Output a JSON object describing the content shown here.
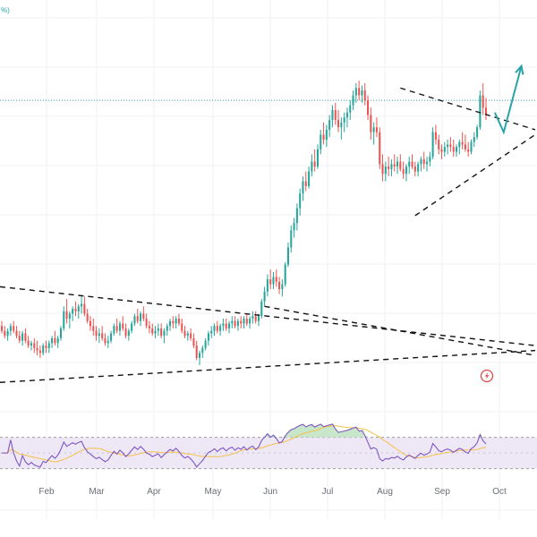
{
  "corner_label": "%)",
  "chart_data": {
    "type": "candlestick",
    "colors": {
      "up": "#26a69a",
      "down": "#ef5350",
      "background": "#ffffff",
      "grid": "#eef0f3",
      "trendline": "#111111",
      "arrow": "#2aa3a8",
      "level_line": "#2aa3a8",
      "rsi_line": "#7e57c2",
      "rsi_ma": "#f5c04a",
      "rsi_band": "#ede7f6",
      "overbought_fill": "#c8e6c9",
      "marker": "#e04a4a"
    },
    "x_axis": {
      "labels": [
        "Feb",
        "Mar",
        "Apr",
        "May",
        "Jun",
        "Jul",
        "Aug",
        "Sep",
        "Oct"
      ]
    },
    "price_panel": {
      "grid": true,
      "candles": [
        {
          "o": 54,
          "h": 56,
          "l": 51,
          "c": 52
        },
        {
          "o": 52,
          "h": 54,
          "l": 49,
          "c": 50
        },
        {
          "o": 50,
          "h": 53,
          "l": 48,
          "c": 52
        },
        {
          "o": 52,
          "h": 55,
          "l": 50,
          "c": 54
        },
        {
          "o": 54,
          "h": 56,
          "l": 51,
          "c": 52
        },
        {
          "o": 52,
          "h": 54,
          "l": 49,
          "c": 50
        },
        {
          "o": 50,
          "h": 52,
          "l": 47,
          "c": 48
        },
        {
          "o": 48,
          "h": 52,
          "l": 46,
          "c": 51
        },
        {
          "o": 51,
          "h": 53,
          "l": 47,
          "c": 48
        },
        {
          "o": 48,
          "h": 50,
          "l": 45,
          "c": 46
        },
        {
          "o": 46,
          "h": 48,
          "l": 44,
          "c": 47
        },
        {
          "o": 47,
          "h": 49,
          "l": 43,
          "c": 45
        },
        {
          "o": 45,
          "h": 48,
          "l": 42,
          "c": 44
        },
        {
          "o": 44,
          "h": 46,
          "l": 41,
          "c": 43
        },
        {
          "o": 43,
          "h": 47,
          "l": 42,
          "c": 46
        },
        {
          "o": 46,
          "h": 48,
          "l": 43,
          "c": 45
        },
        {
          "o": 45,
          "h": 48,
          "l": 43,
          "c": 47
        },
        {
          "o": 47,
          "h": 50,
          "l": 45,
          "c": 49
        },
        {
          "o": 49,
          "h": 52,
          "l": 46,
          "c": 47
        },
        {
          "o": 47,
          "h": 50,
          "l": 45,
          "c": 49
        },
        {
          "o": 49,
          "h": 54,
          "l": 48,
          "c": 53
        },
        {
          "o": 53,
          "h": 62,
          "l": 52,
          "c": 60
        },
        {
          "o": 60,
          "h": 65,
          "l": 55,
          "c": 57
        },
        {
          "o": 57,
          "h": 60,
          "l": 53,
          "c": 59
        },
        {
          "o": 59,
          "h": 62,
          "l": 56,
          "c": 61
        },
        {
          "o": 61,
          "h": 64,
          "l": 58,
          "c": 60
        },
        {
          "o": 60,
          "h": 63,
          "l": 57,
          "c": 62
        },
        {
          "o": 62,
          "h": 66,
          "l": 59,
          "c": 63
        },
        {
          "o": 63,
          "h": 66,
          "l": 58,
          "c": 59
        },
        {
          "o": 59,
          "h": 61,
          "l": 55,
          "c": 56
        },
        {
          "o": 56,
          "h": 58,
          "l": 52,
          "c": 54
        },
        {
          "o": 54,
          "h": 57,
          "l": 50,
          "c": 52
        },
        {
          "o": 52,
          "h": 54,
          "l": 48,
          "c": 50
        },
        {
          "o": 50,
          "h": 53,
          "l": 47,
          "c": 51
        },
        {
          "o": 51,
          "h": 54,
          "l": 48,
          "c": 49
        },
        {
          "o": 49,
          "h": 51,
          "l": 46,
          "c": 47
        },
        {
          "o": 47,
          "h": 50,
          "l": 45,
          "c": 48
        },
        {
          "o": 48,
          "h": 52,
          "l": 47,
          "c": 51
        },
        {
          "o": 51,
          "h": 55,
          "l": 50,
          "c": 54
        },
        {
          "o": 54,
          "h": 57,
          "l": 51,
          "c": 52
        },
        {
          "o": 52,
          "h": 56,
          "l": 50,
          "c": 55
        },
        {
          "o": 55,
          "h": 58,
          "l": 52,
          "c": 53
        },
        {
          "o": 53,
          "h": 55,
          "l": 49,
          "c": 50
        },
        {
          "o": 50,
          "h": 53,
          "l": 48,
          "c": 52
        },
        {
          "o": 52,
          "h": 56,
          "l": 51,
          "c": 55
        },
        {
          "o": 55,
          "h": 59,
          "l": 54,
          "c": 58
        },
        {
          "o": 58,
          "h": 61,
          "l": 55,
          "c": 56
        },
        {
          "o": 56,
          "h": 60,
          "l": 54,
          "c": 59
        },
        {
          "o": 59,
          "h": 62,
          "l": 56,
          "c": 57
        },
        {
          "o": 57,
          "h": 59,
          "l": 53,
          "c": 54
        },
        {
          "o": 54,
          "h": 56,
          "l": 51,
          "c": 53
        },
        {
          "o": 53,
          "h": 55,
          "l": 50,
          "c": 51
        },
        {
          "o": 51,
          "h": 54,
          "l": 49,
          "c": 52
        },
        {
          "o": 52,
          "h": 55,
          "l": 50,
          "c": 53
        },
        {
          "o": 53,
          "h": 55,
          "l": 49,
          "c": 50
        },
        {
          "o": 50,
          "h": 53,
          "l": 47,
          "c": 52
        },
        {
          "o": 52,
          "h": 55,
          "l": 50,
          "c": 54
        },
        {
          "o": 54,
          "h": 57,
          "l": 52,
          "c": 56
        },
        {
          "o": 56,
          "h": 58,
          "l": 53,
          "c": 55
        },
        {
          "o": 55,
          "h": 58,
          "l": 53,
          "c": 57
        },
        {
          "o": 57,
          "h": 59,
          "l": 54,
          "c": 55
        },
        {
          "o": 55,
          "h": 57,
          "l": 51,
          "c": 52
        },
        {
          "o": 52,
          "h": 54,
          "l": 49,
          "c": 50
        },
        {
          "o": 50,
          "h": 52,
          "l": 48,
          "c": 51
        },
        {
          "o": 51,
          "h": 53,
          "l": 48,
          "c": 49
        },
        {
          "o": 49,
          "h": 51,
          "l": 45,
          "c": 46
        },
        {
          "o": 46,
          "h": 48,
          "l": 40,
          "c": 41
        },
        {
          "o": 41,
          "h": 44,
          "l": 38,
          "c": 43
        },
        {
          "o": 43,
          "h": 46,
          "l": 41,
          "c": 45
        },
        {
          "o": 45,
          "h": 49,
          "l": 44,
          "c": 48
        },
        {
          "o": 48,
          "h": 52,
          "l": 46,
          "c": 51
        },
        {
          "o": 51,
          "h": 54,
          "l": 49,
          "c": 52
        },
        {
          "o": 52,
          "h": 55,
          "l": 50,
          "c": 54
        },
        {
          "o": 54,
          "h": 56,
          "l": 51,
          "c": 52
        },
        {
          "o": 52,
          "h": 55,
          "l": 50,
          "c": 54
        },
        {
          "o": 54,
          "h": 57,
          "l": 52,
          "c": 55
        },
        {
          "o": 55,
          "h": 57,
          "l": 52,
          "c": 53
        },
        {
          "o": 53,
          "h": 56,
          "l": 51,
          "c": 55
        },
        {
          "o": 55,
          "h": 58,
          "l": 53,
          "c": 56
        },
        {
          "o": 56,
          "h": 58,
          "l": 53,
          "c": 54
        },
        {
          "o": 54,
          "h": 57,
          "l": 52,
          "c": 56
        },
        {
          "o": 56,
          "h": 58,
          "l": 53,
          "c": 55
        },
        {
          "o": 55,
          "h": 58,
          "l": 53,
          "c": 57
        },
        {
          "o": 57,
          "h": 59,
          "l": 54,
          "c": 55
        },
        {
          "o": 55,
          "h": 58,
          "l": 53,
          "c": 57
        },
        {
          "o": 57,
          "h": 60,
          "l": 55,
          "c": 58
        },
        {
          "o": 58,
          "h": 60,
          "l": 55,
          "c": 56
        },
        {
          "o": 56,
          "h": 59,
          "l": 54,
          "c": 58
        },
        {
          "o": 58,
          "h": 65,
          "l": 57,
          "c": 64
        },
        {
          "o": 64,
          "h": 70,
          "l": 62,
          "c": 68
        },
        {
          "o": 68,
          "h": 75,
          "l": 66,
          "c": 73
        },
        {
          "o": 73,
          "h": 77,
          "l": 69,
          "c": 71
        },
        {
          "o": 71,
          "h": 76,
          "l": 69,
          "c": 74
        },
        {
          "o": 74,
          "h": 77,
          "l": 70,
          "c": 72
        },
        {
          "o": 72,
          "h": 74,
          "l": 67,
          "c": 69
        },
        {
          "o": 69,
          "h": 73,
          "l": 66,
          "c": 71
        },
        {
          "o": 71,
          "h": 80,
          "l": 70,
          "c": 79
        },
        {
          "o": 79,
          "h": 88,
          "l": 78,
          "c": 86
        },
        {
          "o": 86,
          "h": 95,
          "l": 84,
          "c": 93
        },
        {
          "o": 93,
          "h": 98,
          "l": 90,
          "c": 96
        },
        {
          "o": 96,
          "h": 104,
          "l": 93,
          "c": 102
        },
        {
          "o": 102,
          "h": 110,
          "l": 99,
          "c": 108
        },
        {
          "o": 108,
          "h": 115,
          "l": 105,
          "c": 113
        },
        {
          "o": 113,
          "h": 117,
          "l": 109,
          "c": 111
        },
        {
          "o": 111,
          "h": 119,
          "l": 110,
          "c": 117
        },
        {
          "o": 117,
          "h": 124,
          "l": 115,
          "c": 121
        },
        {
          "o": 121,
          "h": 126,
          "l": 117,
          "c": 119
        },
        {
          "o": 119,
          "h": 128,
          "l": 118,
          "c": 126
        },
        {
          "o": 126,
          "h": 134,
          "l": 124,
          "c": 132
        },
        {
          "o": 132,
          "h": 137,
          "l": 128,
          "c": 130
        },
        {
          "o": 130,
          "h": 136,
          "l": 127,
          "c": 134
        },
        {
          "o": 134,
          "h": 140,
          "l": 131,
          "c": 138
        },
        {
          "o": 138,
          "h": 144,
          "l": 135,
          "c": 142
        },
        {
          "o": 142,
          "h": 145,
          "l": 136,
          "c": 138
        },
        {
          "o": 138,
          "h": 142,
          "l": 133,
          "c": 135
        },
        {
          "o": 135,
          "h": 139,
          "l": 130,
          "c": 137
        },
        {
          "o": 137,
          "h": 141,
          "l": 133,
          "c": 139
        },
        {
          "o": 139,
          "h": 143,
          "l": 135,
          "c": 141
        },
        {
          "o": 141,
          "h": 146,
          "l": 138,
          "c": 144
        },
        {
          "o": 144,
          "h": 150,
          "l": 142,
          "c": 148
        },
        {
          "o": 148,
          "h": 153,
          "l": 145,
          "c": 151
        },
        {
          "o": 151,
          "h": 154,
          "l": 146,
          "c": 148
        },
        {
          "o": 148,
          "h": 152,
          "l": 145,
          "c": 150
        },
        {
          "o": 150,
          "h": 153,
          "l": 144,
          "c": 146
        },
        {
          "o": 146,
          "h": 148,
          "l": 138,
          "c": 140
        },
        {
          "o": 140,
          "h": 143,
          "l": 130,
          "c": 133
        },
        {
          "o": 133,
          "h": 137,
          "l": 128,
          "c": 135
        },
        {
          "o": 135,
          "h": 139,
          "l": 131,
          "c": 133
        },
        {
          "o": 133,
          "h": 135,
          "l": 118,
          "c": 120
        },
        {
          "o": 120,
          "h": 124,
          "l": 113,
          "c": 116
        },
        {
          "o": 116,
          "h": 121,
          "l": 113,
          "c": 119
        },
        {
          "o": 119,
          "h": 123,
          "l": 115,
          "c": 118
        },
        {
          "o": 118,
          "h": 122,
          "l": 115,
          "c": 120
        },
        {
          "o": 120,
          "h": 124,
          "l": 117,
          "c": 119
        },
        {
          "o": 119,
          "h": 123,
          "l": 116,
          "c": 121
        },
        {
          "o": 121,
          "h": 124,
          "l": 117,
          "c": 118
        },
        {
          "o": 118,
          "h": 121,
          "l": 114,
          "c": 116
        },
        {
          "o": 116,
          "h": 120,
          "l": 113,
          "c": 119
        },
        {
          "o": 119,
          "h": 123,
          "l": 116,
          "c": 121
        },
        {
          "o": 121,
          "h": 124,
          "l": 118,
          "c": 119
        },
        {
          "o": 119,
          "h": 121,
          "l": 115,
          "c": 117
        },
        {
          "o": 117,
          "h": 121,
          "l": 115,
          "c": 120
        },
        {
          "o": 120,
          "h": 123,
          "l": 117,
          "c": 122
        },
        {
          "o": 122,
          "h": 125,
          "l": 118,
          "c": 120
        },
        {
          "o": 120,
          "h": 123,
          "l": 117,
          "c": 121
        },
        {
          "o": 121,
          "h": 125,
          "l": 119,
          "c": 123
        },
        {
          "o": 123,
          "h": 135,
          "l": 122,
          "c": 133
        },
        {
          "o": 133,
          "h": 136,
          "l": 128,
          "c": 130
        },
        {
          "o": 130,
          "h": 132,
          "l": 124,
          "c": 126
        },
        {
          "o": 126,
          "h": 128,
          "l": 122,
          "c": 125
        },
        {
          "o": 125,
          "h": 129,
          "l": 123,
          "c": 127
        },
        {
          "o": 127,
          "h": 130,
          "l": 124,
          "c": 128
        },
        {
          "o": 128,
          "h": 131,
          "l": 125,
          "c": 127
        },
        {
          "o": 127,
          "h": 130,
          "l": 123,
          "c": 125
        },
        {
          "o": 125,
          "h": 128,
          "l": 123,
          "c": 127
        },
        {
          "o": 127,
          "h": 130,
          "l": 124,
          "c": 129
        },
        {
          "o": 129,
          "h": 133,
          "l": 126,
          "c": 128
        },
        {
          "o": 128,
          "h": 132,
          "l": 125,
          "c": 126
        },
        {
          "o": 126,
          "h": 129,
          "l": 123,
          "c": 125
        },
        {
          "o": 125,
          "h": 130,
          "l": 124,
          "c": 129
        },
        {
          "o": 129,
          "h": 133,
          "l": 127,
          "c": 131
        },
        {
          "o": 131,
          "h": 136,
          "l": 130,
          "c": 135
        },
        {
          "o": 135,
          "h": 150,
          "l": 134,
          "c": 148
        },
        {
          "o": 148,
          "h": 153,
          "l": 140,
          "c": 143
        },
        {
          "o": 143,
          "h": 147,
          "l": 138,
          "c": 140
        }
      ],
      "resistance_level": 146,
      "trendlines": [
        {
          "from": [
            0,
            70
          ],
          "to": [
            -1,
            46
          ]
        },
        {
          "from": [
            0,
            31
          ],
          "to": [
            -1,
            44
          ]
        },
        {
          "from": [
            89,
            62
          ],
          "to": [
            -1,
            42
          ]
        },
        {
          "from": [
            135,
            151
          ],
          "to": [
            -1,
            134
          ]
        },
        {
          "from": [
            140,
            99
          ],
          "to": [
            -1,
            132
          ]
        }
      ],
      "forecast_arrow": [
        [
          167,
          141
        ],
        [
          170,
          133
        ],
        [
          176,
          160
        ]
      ],
      "marker_icon": "lightning-bolt-icon"
    },
    "rsi_panel": {
      "upper_band": 70,
      "lower_band": 30,
      "ma_period": 14
    }
  }
}
